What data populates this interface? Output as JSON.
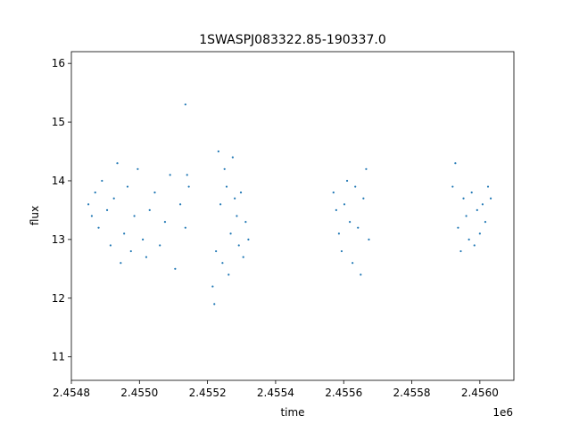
{
  "chart_data": {
    "type": "scatter",
    "title": "1SWASPJ083322.85-190337.0",
    "xlabel": "time",
    "ylabel": "flux",
    "x_offset_label": "1e6",
    "xlim": [
      2.4548,
      2.4561
    ],
    "ylim": [
      10.6,
      16.2
    ],
    "grid": false,
    "legend": "none",
    "x_ticks": [
      {
        "value": 2.4548,
        "label": "2.4548"
      },
      {
        "value": 2.455,
        "label": "2.4550"
      },
      {
        "value": 2.4552,
        "label": "2.4552"
      },
      {
        "value": 2.4554,
        "label": "2.4554"
      },
      {
        "value": 2.4556,
        "label": "2.4556"
      },
      {
        "value": 2.4558,
        "label": "2.4558"
      },
      {
        "value": 2.456,
        "label": "2.4560"
      }
    ],
    "y_ticks": [
      {
        "value": 11,
        "label": "11"
      },
      {
        "value": 12,
        "label": "12"
      },
      {
        "value": 13,
        "label": "13"
      },
      {
        "value": 14,
        "label": "14"
      },
      {
        "value": 15,
        "label": "15"
      },
      {
        "value": 16,
        "label": "16"
      }
    ],
    "point_color": "#1f77b4",
    "series": [
      {
        "x": [
          2.45485,
          2.45486,
          2.45487,
          2.45488,
          2.45489,
          2.454905,
          2.454915,
          2.454925,
          2.454935,
          2.454945,
          2.454955,
          2.454965,
          2.454975,
          2.454985,
          2.454995,
          2.45501,
          2.45502,
          2.45503,
          2.455045,
          2.45506,
          2.455075,
          2.45509,
          2.455105,
          2.45512,
          2.455135,
          2.455145
        ],
        "y": [
          13.6,
          13.4,
          13.8,
          13.2,
          14.0,
          13.5,
          12.9,
          13.7,
          14.3,
          12.6,
          13.1,
          13.9,
          12.8,
          13.4,
          14.2,
          13.0,
          12.7,
          13.5,
          13.8,
          12.9,
          13.3,
          14.1,
          12.5,
          13.6,
          13.2,
          13.9
        ]
      },
      {
        "x": [
          2.455135,
          2.45514,
          2.455215,
          2.45522,
          2.455225,
          2.455232,
          2.455238,
          2.455244,
          2.45525,
          2.455256,
          2.455262,
          2.455268,
          2.455274,
          2.45528,
          2.455286,
          2.455292,
          2.455298,
          2.455305,
          2.455312,
          2.45532
        ],
        "y": [
          15.3,
          14.1,
          12.2,
          11.9,
          12.8,
          14.5,
          13.6,
          12.6,
          14.2,
          13.9,
          12.4,
          13.1,
          14.4,
          13.7,
          13.4,
          12.9,
          13.8,
          12.7,
          13.3,
          13.0
        ]
      },
      {
        "x": [
          2.45557,
          2.455578,
          2.455586,
          2.455594,
          2.455602,
          2.45561,
          2.455618,
          2.455626,
          2.455634,
          2.455642,
          2.45565,
          2.455658,
          2.455666,
          2.455674
        ],
        "y": [
          13.8,
          13.5,
          13.1,
          12.8,
          13.6,
          14.0,
          13.3,
          12.6,
          13.9,
          13.2,
          12.4,
          13.7,
          14.2,
          13.0
        ]
      },
      {
        "x": [
          2.45592,
          2.455928,
          2.455936,
          2.455944,
          2.455952,
          2.45596,
          2.455968,
          2.455976,
          2.455984,
          2.455992,
          2.456,
          2.456008,
          2.456016,
          2.456024,
          2.456032
        ],
        "y": [
          13.9,
          14.3,
          13.2,
          12.8,
          13.7,
          13.4,
          13.0,
          13.8,
          12.9,
          13.5,
          13.1,
          13.6,
          13.3,
          13.9,
          13.7
        ]
      }
    ]
  }
}
